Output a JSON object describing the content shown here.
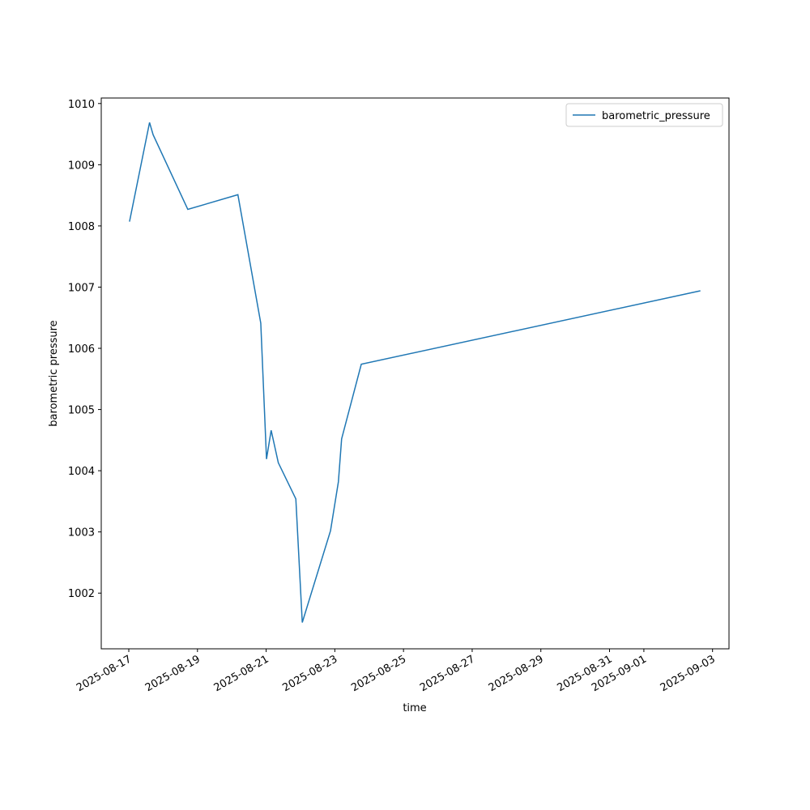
{
  "chart_data": {
    "type": "line",
    "xlabel": "time",
    "ylabel": "barometric pressure",
    "x": [
      "2025-08-17T00:30",
      "2025-08-17T14:30",
      "2025-08-17T17:00",
      "2025-08-18T17:15",
      "2025-08-20T04:15",
      "2025-08-20T20:15",
      "2025-08-21T00:15",
      "2025-08-21T03:30",
      "2025-08-21T08:30",
      "2025-08-21T20:45",
      "2025-08-22T01:15",
      "2025-08-22T21:00",
      "2025-08-23T02:30",
      "2025-08-23T04:45",
      "2025-08-23T18:30",
      "2025-09-02T15:30"
    ],
    "series": [
      {
        "name": "barometric_pressure",
        "color": "#1f77b4",
        "values": [
          1008.07,
          1009.69,
          1009.49,
          1008.27,
          1008.51,
          1006.41,
          1004.19,
          1004.66,
          1004.13,
          1003.54,
          1001.52,
          1003.02,
          1003.82,
          1004.52,
          1005.74,
          1006.94
        ]
      }
    ],
    "xlim": [
      "2025-08-16T04:45",
      "2025-09-03T11:30"
    ],
    "xticks": [
      "2025-08-17",
      "2025-08-19",
      "2025-08-21",
      "2025-08-23",
      "2025-08-25",
      "2025-08-27",
      "2025-08-29",
      "2025-08-31",
      "2025-09-01",
      "2025-09-03"
    ],
    "ylim": [
      1001.09,
      1010.09
    ],
    "yticks": [
      1002,
      1003,
      1004,
      1005,
      1006,
      1007,
      1008,
      1009,
      1010
    ],
    "legend": "upper right"
  }
}
